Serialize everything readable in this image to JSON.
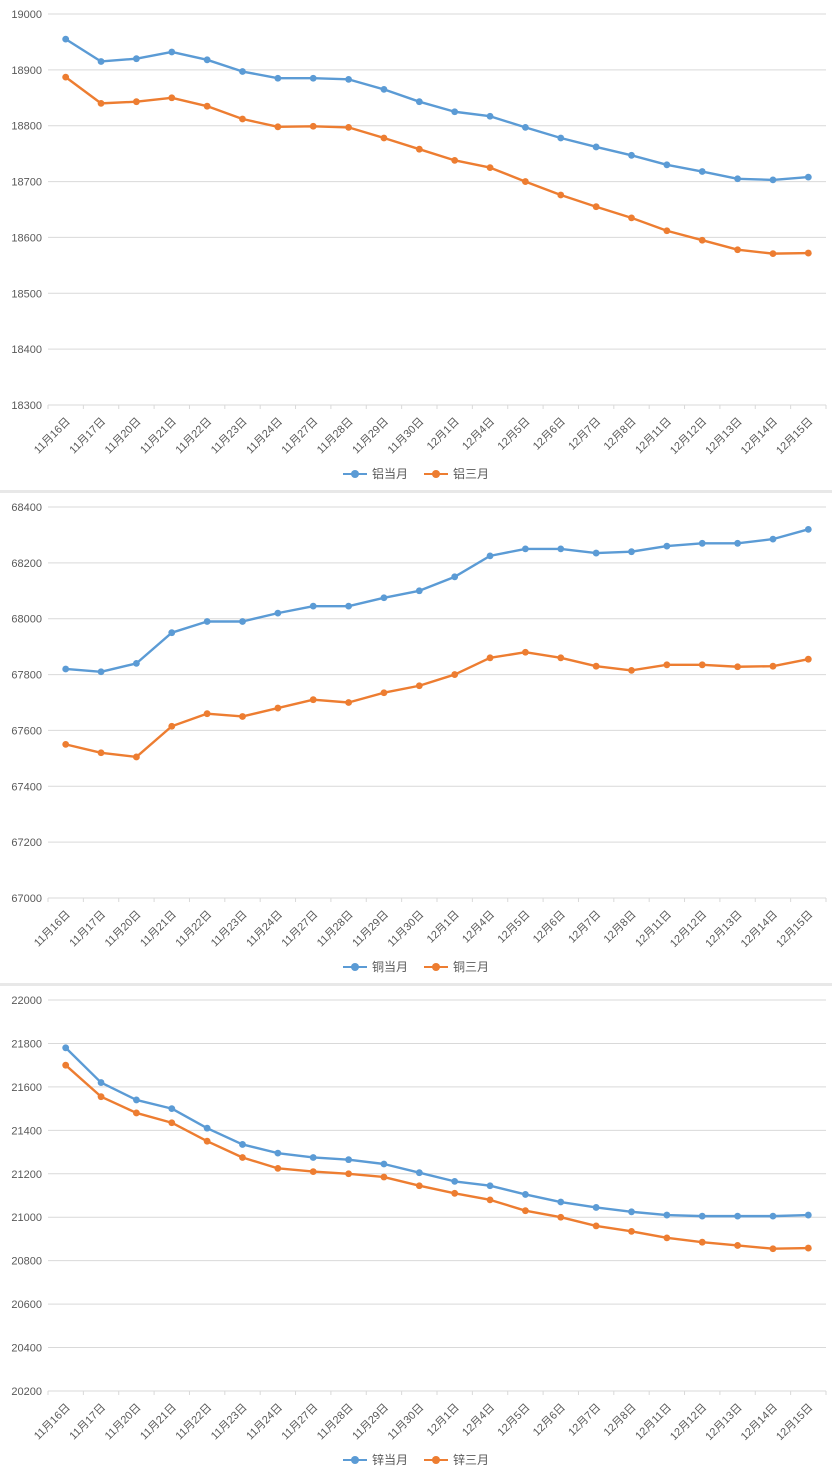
{
  "charts_meta": {
    "grid_color": "#D9D9D9",
    "axis_text_color": "#595959",
    "separator_color": "#E8E8E8",
    "background_color": "#FFFFFF"
  },
  "chart_data": [
    {
      "type": "line",
      "grid": true,
      "legend_position": "bottom",
      "ylim": [
        18300,
        19000
      ],
      "ytick_step": 100,
      "categories": [
        "11月16日",
        "11月17日",
        "11月20日",
        "11月21日",
        "11月22日",
        "11月23日",
        "11月24日",
        "11月27日",
        "11月28日",
        "11月29日",
        "11月30日",
        "12月1日",
        "12月4日",
        "12月5日",
        "12月6日",
        "12月7日",
        "12月8日",
        "12月11日",
        "12月12日",
        "12月13日",
        "12月14日",
        "12月15日"
      ],
      "series": [
        {
          "name": "铝当月",
          "color": "#5B9BD5",
          "values": [
            18955,
            18915,
            18920,
            18932,
            18918,
            18897,
            18885,
            18885,
            18883,
            18865,
            18843,
            18825,
            18817,
            18797,
            18778,
            18762,
            18747,
            18730,
            18718,
            18705,
            18703,
            18708
          ]
        },
        {
          "name": "铝三月",
          "color": "#ED7D31",
          "values": [
            18887,
            18840,
            18843,
            18850,
            18835,
            18812,
            18798,
            18799,
            18797,
            18778,
            18758,
            18738,
            18725,
            18700,
            18676,
            18655,
            18635,
            18612,
            18595,
            18578,
            18571,
            18572
          ]
        }
      ]
    },
    {
      "type": "line",
      "grid": true,
      "legend_position": "bottom",
      "ylim": [
        67000,
        68400
      ],
      "ytick_step": 200,
      "categories": [
        "11月16日",
        "11月17日",
        "11月20日",
        "11月21日",
        "11月22日",
        "11月23日",
        "11月24日",
        "11月27日",
        "11月28日",
        "11月29日",
        "11月30日",
        "12月1日",
        "12月4日",
        "12月5日",
        "12月6日",
        "12月7日",
        "12月8日",
        "12月11日",
        "12月12日",
        "12月13日",
        "12月14日",
        "12月15日"
      ],
      "series": [
        {
          "name": "铜当月",
          "color": "#5B9BD5",
          "values": [
            67820,
            67810,
            67840,
            67950,
            67990,
            67990,
            68020,
            68045,
            68045,
            68075,
            68100,
            68150,
            68225,
            68250,
            68250,
            68235,
            68240,
            68260,
            68270,
            68270,
            68285,
            68320
          ]
        },
        {
          "name": "铜三月",
          "color": "#ED7D31",
          "values": [
            67550,
            67520,
            67505,
            67615,
            67660,
            67650,
            67680,
            67710,
            67700,
            67735,
            67760,
            67800,
            67860,
            67880,
            67860,
            67830,
            67815,
            67835,
            67835,
            67828,
            67830,
            67855
          ]
        }
      ]
    },
    {
      "type": "line",
      "grid": true,
      "legend_position": "bottom",
      "ylim": [
        20200,
        22000
      ],
      "ytick_step": 200,
      "categories": [
        "11月16日",
        "11月17日",
        "11月20日",
        "11月21日",
        "11月22日",
        "11月23日",
        "11月24日",
        "11月27日",
        "11月28日",
        "11月29日",
        "11月30日",
        "12月1日",
        "12月4日",
        "12月5日",
        "12月6日",
        "12月7日",
        "12月8日",
        "12月11日",
        "12月12日",
        "12月13日",
        "12月14日",
        "12月15日"
      ],
      "series": [
        {
          "name": "锌当月",
          "color": "#5B9BD5",
          "values": [
            21780,
            21620,
            21540,
            21500,
            21410,
            21335,
            21295,
            21275,
            21265,
            21245,
            21205,
            21165,
            21145,
            21105,
            21070,
            21045,
            21025,
            21010,
            21005,
            21005,
            21005,
            21010
          ]
        },
        {
          "name": "锌三月",
          "color": "#ED7D31",
          "values": [
            21700,
            21555,
            21480,
            21435,
            21350,
            21275,
            21225,
            21210,
            21200,
            21185,
            21145,
            21110,
            21080,
            21030,
            21000,
            20960,
            20935,
            20905,
            20885,
            20870,
            20855,
            20858
          ]
        }
      ]
    }
  ]
}
